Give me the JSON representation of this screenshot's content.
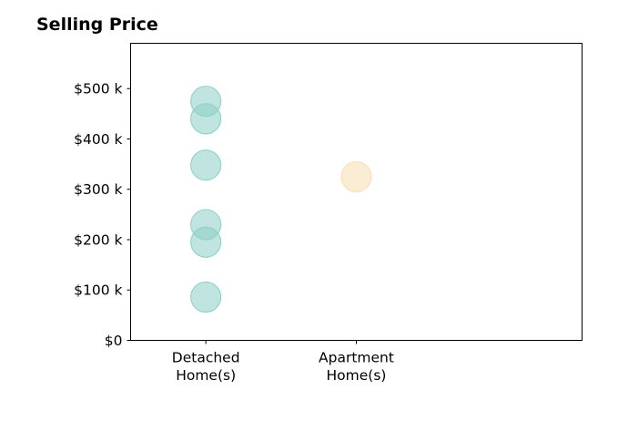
{
  "chart_data": {
    "type": "scatter",
    "title": "Selling Price",
    "xlabel": "",
    "ylabel": "",
    "categories": [
      [
        "Detached",
        "Home(s)"
      ],
      [
        "Apartment",
        "Home(s)"
      ]
    ],
    "xlim": [
      -0.5,
      2.5
    ],
    "ylim": [
      0,
      590000
    ],
    "yticks": [
      {
        "value": 0,
        "label": "$0"
      },
      {
        "value": 100000,
        "label": "$100 k"
      },
      {
        "value": 200000,
        "label": "$200 k"
      },
      {
        "value": 300000,
        "label": "$300 k"
      },
      {
        "value": 400000,
        "label": "$400 k"
      },
      {
        "value": 500000,
        "label": "$500 k"
      }
    ],
    "series": [
      {
        "category_index": 0,
        "color": "#8ccfc6",
        "values": [
          475000,
          440000,
          348000,
          230000,
          195000,
          86000
        ]
      },
      {
        "category_index": 1,
        "color": "#f6dfb0",
        "values": [
          325000
        ]
      }
    ],
    "grid": false,
    "legend": "none"
  }
}
